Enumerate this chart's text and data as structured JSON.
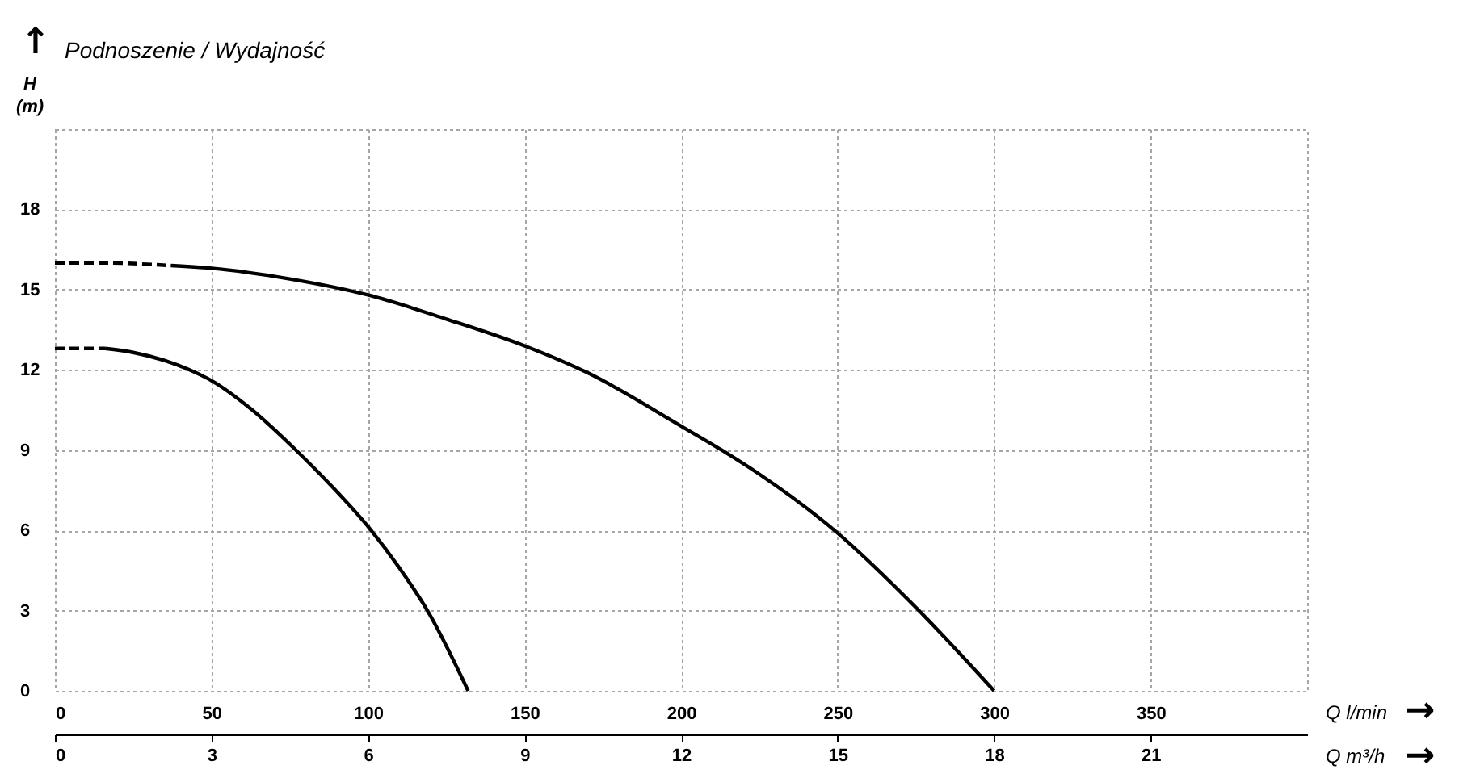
{
  "chart_data": {
    "type": "line",
    "title": "Podnoszenie / Wydajność",
    "xlabel": "Q l/min",
    "ylabel": "H (m)",
    "x2label": "Q m³/h",
    "annotations": [
      "↑",
      "→",
      "→"
    ],
    "xlim": [
      0,
      400
    ],
    "xticks": [
      0,
      50,
      100,
      150,
      200,
      250,
      300,
      350
    ],
    "ylim": [
      0,
      21
    ],
    "yticks": [
      0,
      3,
      6,
      9,
      12,
      15,
      18
    ],
    "x2lim": [
      0,
      24
    ],
    "x2ticks": [
      0,
      3,
      6,
      9,
      12,
      15,
      18,
      21
    ],
    "grid": true,
    "series": [
      {
        "color": "#000000",
        "line_style": "dashed",
        "x": [
          0,
          15,
          37
        ],
        "values": [
          16.0,
          16.0,
          15.9
        ]
      },
      {
        "color": "#000000",
        "line_style": "solid",
        "x": [
          37,
          50,
          75,
          100,
          125,
          150,
          170,
          200,
          213,
          225,
          249,
          276,
          300
        ],
        "values": [
          15.9,
          15.8,
          15.4,
          14.8,
          13.9,
          12.9,
          11.9,
          9.9,
          9.0,
          8.1,
          6.0,
          3.0,
          0
        ]
      },
      {
        "color": "#000000",
        "line_style": "dashed",
        "x": [
          0,
          8,
          16
        ],
        "values": [
          12.8,
          12.8,
          12.8
        ]
      },
      {
        "color": "#000000",
        "line_style": "solid",
        "x": [
          16,
          25,
          35,
          43,
          50,
          62,
          77,
          88,
          101,
          110,
          119,
          132
        ],
        "values": [
          12.8,
          12.65,
          12.35,
          12.0,
          11.6,
          10.6,
          9.0,
          7.7,
          6.0,
          4.6,
          3.0,
          0
        ]
      }
    ]
  }
}
